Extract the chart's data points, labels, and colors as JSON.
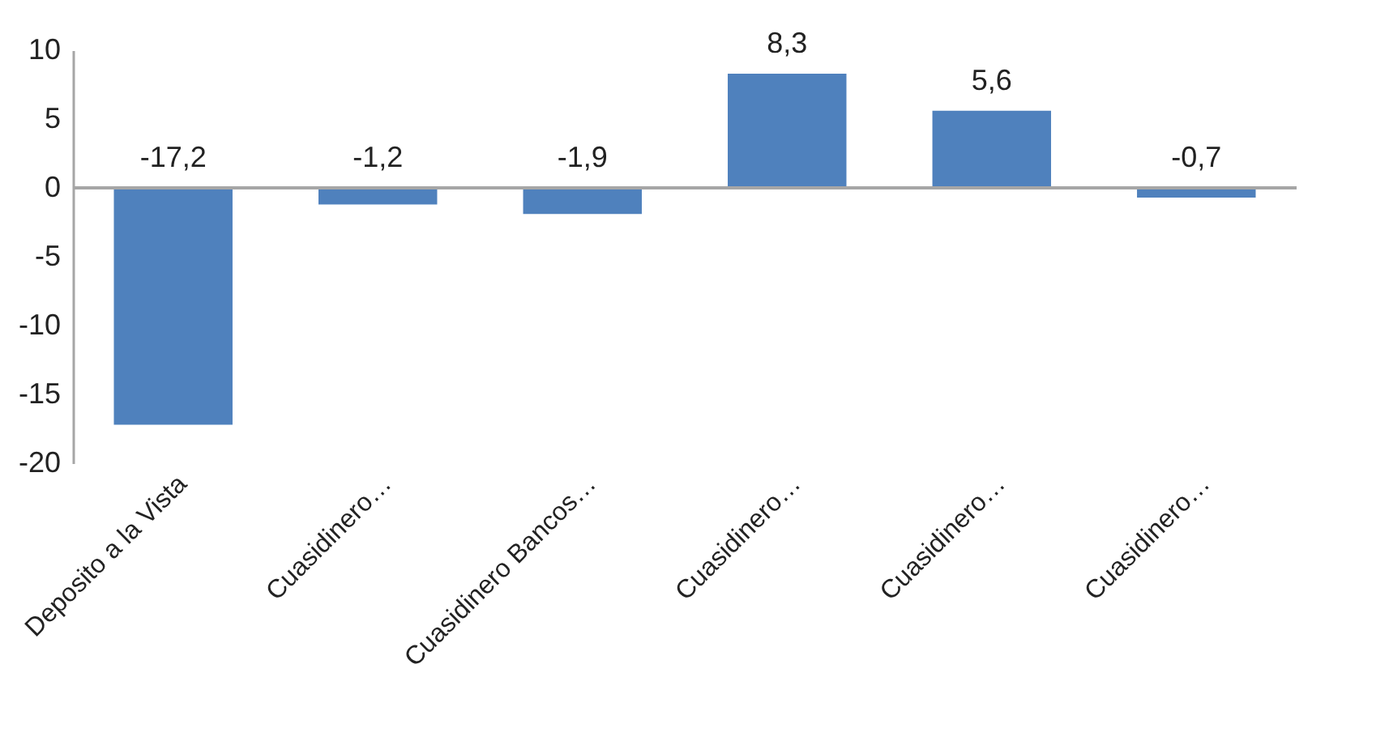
{
  "chart_data": {
    "type": "bar",
    "categories": [
      "Deposito a la Vista",
      "Cuasidinero…",
      "Cuasidinero Bancos…",
      "Cuasidinero…",
      "Cuasidinero…",
      "Cuasidinero…"
    ],
    "values": [
      -17.2,
      -1.2,
      -1.9,
      8.3,
      5.6,
      -0.7
    ],
    "value_labels": [
      "-17,2",
      "-1,2",
      "-1,9",
      "8,3",
      "5,6",
      "-0,7"
    ],
    "color": "#4f81bd",
    "ylim": [
      -20,
      10
    ],
    "yticks": [
      -20,
      -15,
      -10,
      -5,
      0,
      5,
      10
    ],
    "grid": false,
    "ref_lines": [
      {
        "axis": "y",
        "value": 0,
        "color": "#a6a6a6"
      }
    ]
  }
}
